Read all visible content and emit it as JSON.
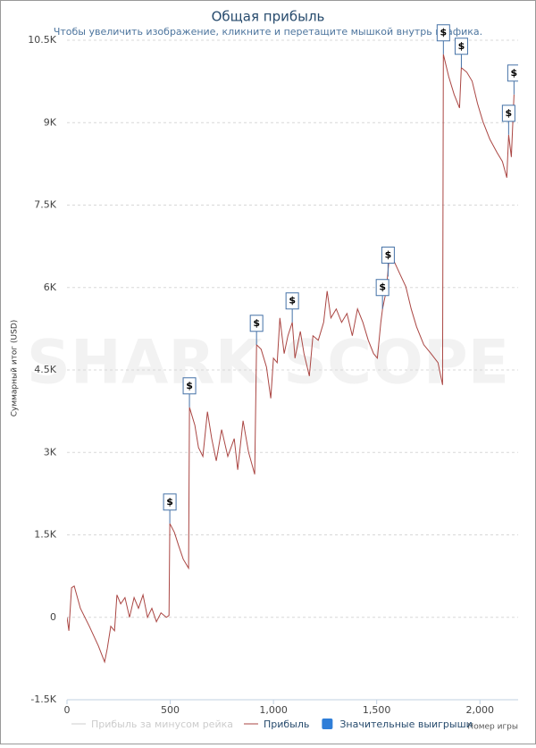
{
  "chart_data": {
    "type": "line",
    "title": "Общая прибыль",
    "subtitle": "Чтобы увеличить изображение, кликните и перетащите мышкой внутрь графика.",
    "watermark": "SHARK SCOPE",
    "y_label": "Суммарный итог (USD)",
    "x_label": "Номер игры",
    "xlim": [
      0,
      2185
    ],
    "ylim": [
      -1500,
      10500
    ],
    "xticks": [
      0,
      500,
      {
        "value": 1000,
        "label": "1,000"
      },
      {
        "value": 1500,
        "label": "1,500"
      },
      {
        "value": 2000,
        "label": "2,000"
      }
    ],
    "yticks": [
      {
        "value": -1500,
        "label": "-1.5K"
      },
      0,
      {
        "value": 1500,
        "label": "1.5K"
      },
      {
        "value": 3000,
        "label": "3K"
      },
      {
        "value": 4500,
        "label": "4.5K"
      },
      {
        "value": 6000,
        "label": "6K"
      },
      {
        "value": 7500,
        "label": "7.5K"
      },
      {
        "value": 9000,
        "label": "9K"
      },
      {
        "value": 10500,
        "label": "10.5K"
      }
    ],
    "grid": true,
    "series": [
      {
        "name": "Прибыль за минусом рейка",
        "color": "#cccccc",
        "visible": false
      },
      {
        "name": "Прибыль",
        "color": "#aa4643",
        "x": [
          0,
          9,
          22,
          35,
          65,
          108,
          152,
          182,
          195,
          212,
          230,
          242,
          260,
          281,
          303,
          325,
          346,
          368,
          390,
          411,
          433,
          455,
          481,
          494,
          498,
          520,
          541,
          563,
          589,
          593,
          619,
          637,
          658,
          680,
          701,
          723,
          749,
          779,
          810,
          827,
          853,
          879,
          909,
          918,
          940,
          966,
          987,
          1000,
          1018,
          1031,
          1052,
          1070,
          1091,
          1104,
          1130,
          1148,
          1174,
          1191,
          1217,
          1243,
          1260,
          1278,
          1304,
          1330,
          1356,
          1382,
          1407,
          1433,
          1459,
          1485,
          1503,
          1520,
          1528,
          1546,
          1563,
          1581,
          1611,
          1641,
          1667,
          1693,
          1728,
          1763,
          1797,
          1819,
          1823,
          1849,
          1875,
          1901,
          1910,
          1936,
          1962,
          1988,
          2014,
          2048,
          2083,
          2109,
          2130,
          2139,
          2152,
          2165
        ],
        "values": [
          0,
          -244,
          537,
          569,
          163,
          -163,
          -520,
          -813,
          -569,
          -163,
          -244,
          407,
          244,
          358,
          0,
          358,
          163,
          407,
          0,
          163,
          -81,
          81,
          0,
          33,
          1707,
          1545,
          1301,
          1057,
          894,
          3821,
          3496,
          3089,
          2927,
          3740,
          3252,
          2846,
          3415,
          2927,
          3252,
          2683,
          3577,
          3008,
          2602,
          4959,
          4878,
          4553,
          3984,
          4715,
          4634,
          5447,
          4797,
          5122,
          5366,
          4715,
          5203,
          4797,
          4390,
          5122,
          5041,
          5366,
          5935,
          5447,
          5610,
          5366,
          5528,
          5122,
          5610,
          5366,
          5041,
          4797,
          4715,
          5366,
          5610,
          5935,
          6634,
          6504,
          6260,
          6016,
          5610,
          5285,
          4959,
          4797,
          4634,
          4228,
          10244,
          9837,
          9512,
          9268,
          10000,
          9918,
          9756,
          9349,
          9024,
          8699,
          8455,
          8293,
          8000,
          8780,
          8374,
          9512
        ]
      },
      {
        "name": "Значительные выигрыши",
        "color": "#2f7ed8",
        "flag_color": "#4572a7",
        "label": "$",
        "x": [
          498,
          593,
          918,
          1091,
          1528,
          1555,
          1823,
          1910,
          2139,
          2165
        ],
        "values": [
          1707,
          3821,
          4959,
          5366,
          5610,
          6200,
          10244,
          10000,
          8780,
          9512
        ]
      }
    ]
  }
}
